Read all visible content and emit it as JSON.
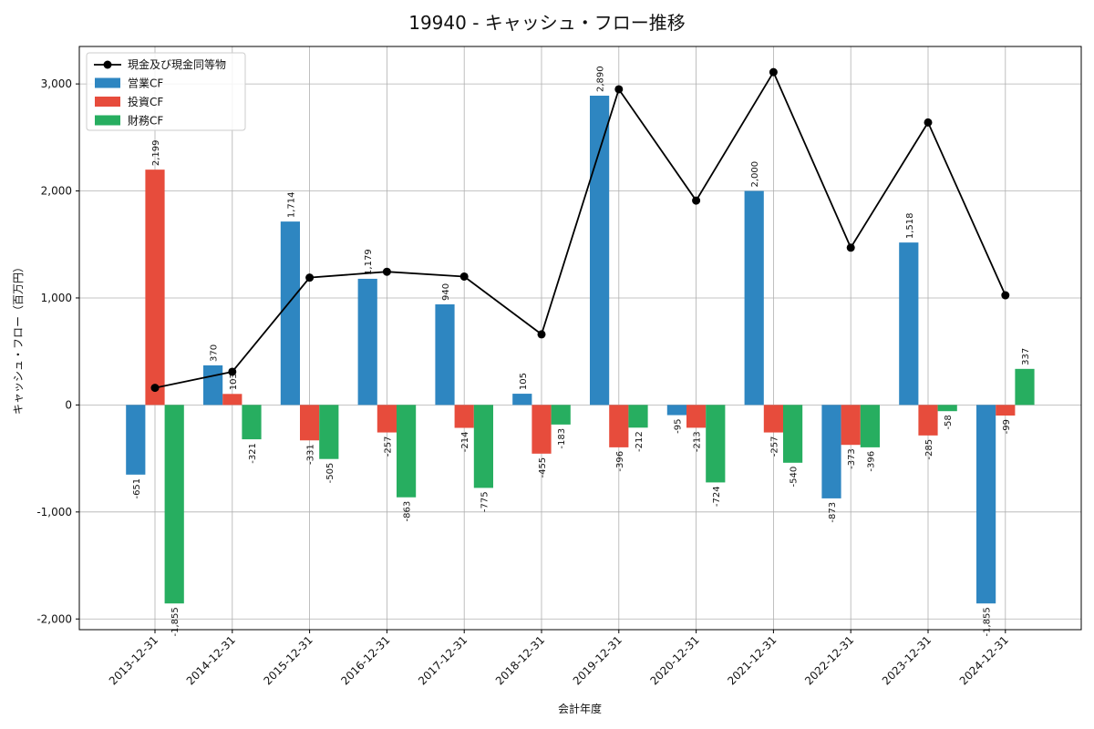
{
  "chart_data": {
    "type": "bar",
    "title": "19940 - キャッシュ・フロー推移",
    "xlabel": "会計年度",
    "ylabel": "キャッシュ・フロー（百万円）",
    "ylim": [
      -2100,
      3350
    ],
    "yticks": [
      -2000,
      -1000,
      0,
      1000,
      2000,
      3000
    ],
    "ytick_labels": [
      "-2,000",
      "-1,000",
      "0",
      "1,000",
      "2,000",
      "3,000"
    ],
    "grid": true,
    "legend_position": "top-left",
    "categories": [
      "2013-12-31",
      "2014-12-31",
      "2015-12-31",
      "2016-12-31",
      "2017-12-31",
      "2018-12-31",
      "2019-12-31",
      "2020-12-31",
      "2021-12-31",
      "2022-12-31",
      "2023-12-31",
      "2024-12-31"
    ],
    "series": [
      {
        "name": "営業CF",
        "type": "bar",
        "color": "#2e86c1",
        "values": [
          -651,
          370,
          1714,
          1179,
          940,
          105,
          2890,
          -95,
          2000,
          -873,
          1518,
          -1855
        ],
        "labels": [
          "-651",
          "370",
          "1,714",
          "1,179",
          "940",
          "105",
          "2,890",
          "-95",
          "2,000",
          "-873",
          "1,518",
          "-1,855"
        ]
      },
      {
        "name": "投資CF",
        "type": "bar",
        "color": "#e74c3c",
        "values": [
          2199,
          103,
          -331,
          -257,
          -214,
          -455,
          -396,
          -213,
          -257,
          -373,
          -285,
          -99
        ],
        "labels": [
          "2,199",
          "103",
          "-331",
          "-257",
          "-214",
          "-455",
          "-396",
          "-213",
          "-257",
          "-373",
          "-285",
          "-99"
        ]
      },
      {
        "name": "財務CF",
        "type": "bar",
        "color": "#27ae60",
        "values": [
          -1855,
          -321,
          -505,
          -863,
          -775,
          -183,
          -212,
          -724,
          -540,
          -396,
          -58,
          337
        ],
        "labels": [
          "-1,855",
          "-321",
          "-505",
          "-863",
          "-775",
          "-183",
          "-212",
          "-724",
          "-540",
          "-396",
          "-58",
          "337"
        ]
      },
      {
        "name": "現金及び現金同等物",
        "type": "line",
        "color": "#000000",
        "values": [
          160,
          310,
          1190,
          1245,
          1200,
          660,
          2950,
          1910,
          3110,
          1470,
          2640,
          1025
        ]
      }
    ]
  }
}
